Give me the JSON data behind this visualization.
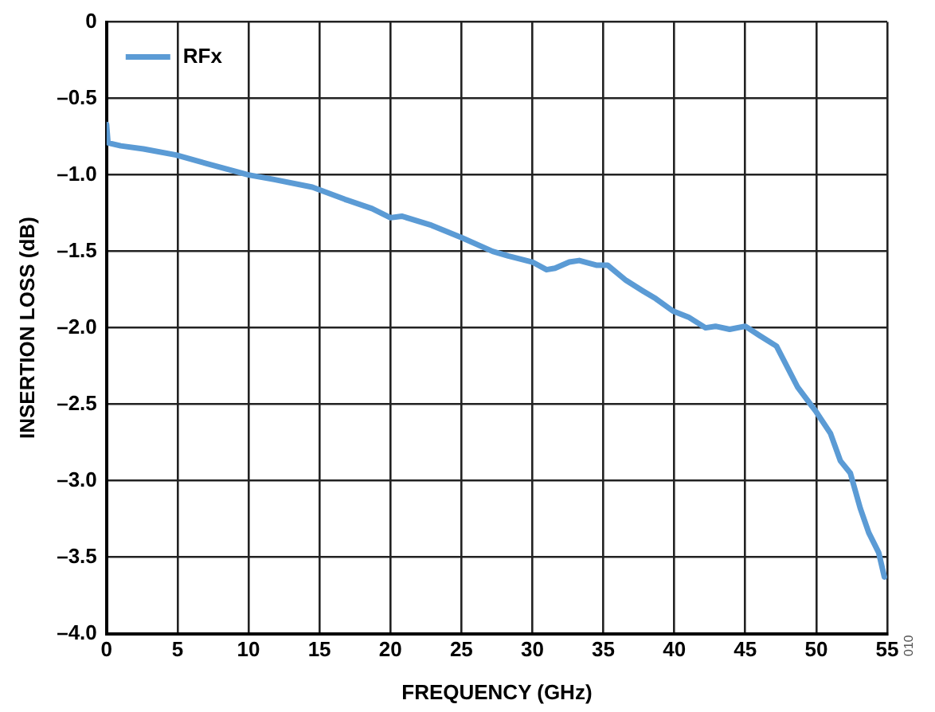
{
  "chart_data": {
    "type": "line",
    "xlabel": "FREQUENCY (GHz)",
    "ylabel": "INSERTION LOSS (dB)",
    "xlim": [
      0,
      55
    ],
    "xticks": [
      0,
      5,
      10,
      15,
      20,
      25,
      30,
      35,
      40,
      45,
      50,
      55
    ],
    "ylim": [
      -4,
      0
    ],
    "yticks": [
      {
        "value": 0,
        "label": "0"
      },
      {
        "value": -0.5,
        "label": "–0.5"
      },
      {
        "value": -1,
        "label": "–1.0"
      },
      {
        "value": -1.5,
        "label": "–1.5"
      },
      {
        "value": -2,
        "label": "–2.0"
      },
      {
        "value": -2.5,
        "label": "–2.5"
      },
      {
        "value": -3,
        "label": "–3.0"
      },
      {
        "value": -3.5,
        "label": "–3.5"
      },
      {
        "value": -4,
        "label": "–4.0"
      }
    ],
    "grid": true,
    "legend": "top left",
    "marker": "none",
    "line_style": "solid",
    "annotations": [
      "010"
    ],
    "series": [
      {
        "name": "RFx",
        "color": "#5b9bd5",
        "x": [
          0,
          0.1,
          1,
          2.6,
          4.9,
          7.2,
          10,
          11.8,
          14.5,
          16.8,
          18.7,
          20,
          20.8,
          22.9,
          25,
          27.2,
          28.3,
          30,
          31,
          31.6,
          32.6,
          33.3,
          34.5,
          35.3,
          36.6,
          37.8,
          38.7,
          39.9,
          41,
          42.2,
          42.9,
          43.9,
          45,
          46,
          47.2,
          48.7,
          50,
          51,
          51.7,
          52.4,
          53.1,
          53.7,
          54.4,
          54.8
        ],
        "values": [
          -0.67,
          -0.79,
          -0.81,
          -0.83,
          -0.87,
          -0.93,
          -1.0,
          -1.03,
          -1.08,
          -1.16,
          -1.22,
          -1.28,
          -1.27,
          -1.33,
          -1.41,
          -1.5,
          -1.53,
          -1.57,
          -1.62,
          -1.61,
          -1.57,
          -1.56,
          -1.59,
          -1.59,
          -1.69,
          -1.76,
          -1.81,
          -1.89,
          -1.93,
          -2.0,
          -1.99,
          -2.01,
          -1.99,
          -2.05,
          -2.12,
          -2.39,
          -2.55,
          -2.69,
          -2.87,
          -2.95,
          -3.18,
          -3.34,
          -3.47,
          -3.63
        ]
      }
    ]
  }
}
